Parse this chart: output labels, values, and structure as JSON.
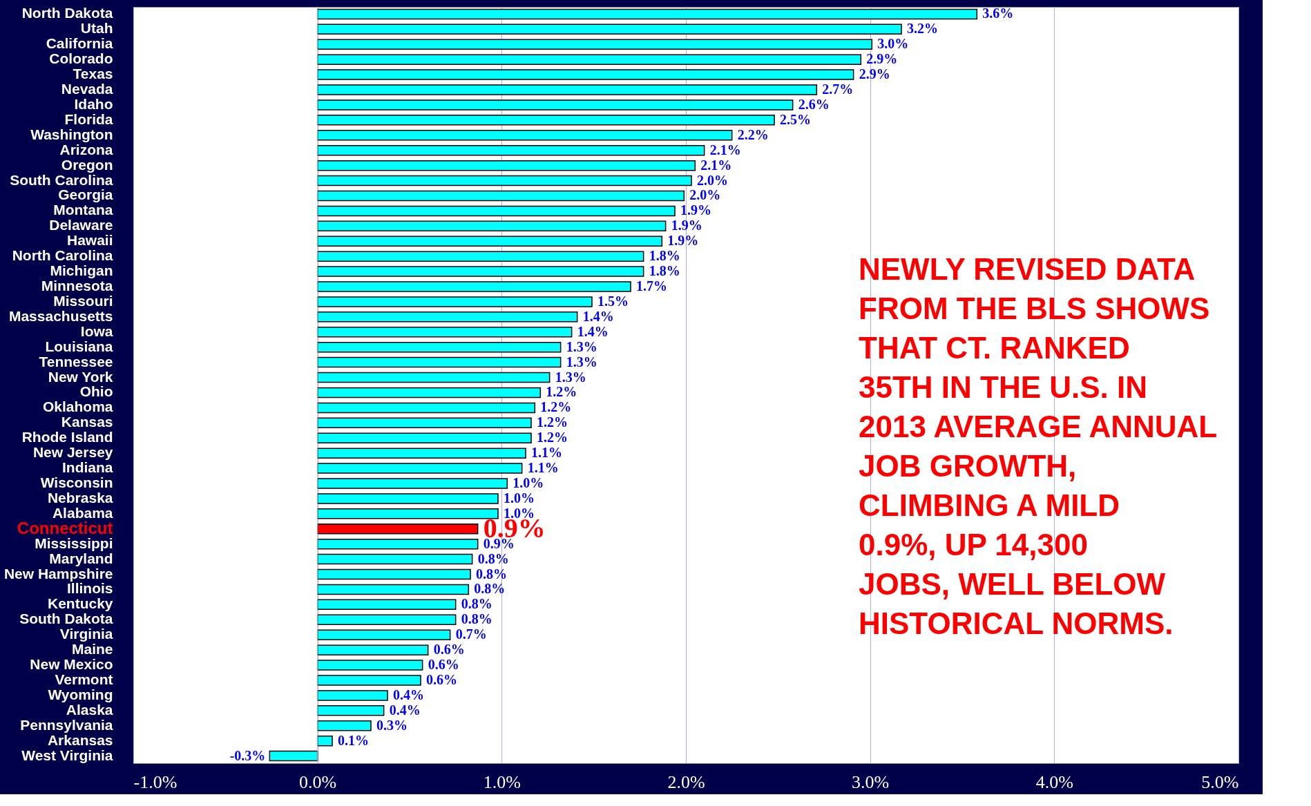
{
  "chart_data": {
    "type": "bar",
    "orientation": "horizontal",
    "categories": [
      "North Dakota",
      "Utah",
      "California",
      "Colorado",
      "Texas",
      "Nevada",
      "Idaho",
      "Florida",
      "Washington",
      "Arizona",
      "Oregon",
      "South Carolina",
      "Georgia",
      "Montana",
      "Delaware",
      "Hawaii",
      "North Carolina",
      "Michigan",
      "Minnesota",
      "Missouri",
      "Massachusetts",
      "Iowa",
      "Louisiana",
      "Tennessee",
      "New York",
      "Ohio",
      "Oklahoma",
      "Kansas",
      "Rhode Island",
      "New Jersey",
      "Indiana",
      "Wisconsin",
      "Nebraska",
      "Alabama",
      "Connecticut",
      "Mississippi",
      "Maryland",
      "New Hampshire",
      "Illinois",
      "Kentucky",
      "South Dakota",
      "Virginia",
      "Maine",
      "New Mexico",
      "Vermont",
      "Wyoming",
      "Alaska",
      "Pennsylvania",
      "Arkansas",
      "West Virginia"
    ],
    "values": [
      3.58,
      3.17,
      3.01,
      2.95,
      2.91,
      2.71,
      2.58,
      2.48,
      2.25,
      2.1,
      2.05,
      2.03,
      1.99,
      1.94,
      1.89,
      1.87,
      1.77,
      1.77,
      1.7,
      1.49,
      1.41,
      1.38,
      1.32,
      1.32,
      1.26,
      1.21,
      1.18,
      1.16,
      1.16,
      1.13,
      1.11,
      1.03,
      0.98,
      0.98,
      0.87,
      0.87,
      0.84,
      0.83,
      0.82,
      0.75,
      0.75,
      0.72,
      0.6,
      0.57,
      0.56,
      0.38,
      0.36,
      0.29,
      0.08,
      -0.26
    ],
    "value_labels": [
      "3.6%",
      "3.2%",
      "3.0%",
      "2.9%",
      "2.9%",
      "2.7%",
      "2.6%",
      "2.5%",
      "2.2%",
      "2.1%",
      "2.1%",
      "2.0%",
      "2.0%",
      "1.9%",
      "1.9%",
      "1.9%",
      "1.8%",
      "1.8%",
      "1.7%",
      "1.5%",
      "1.4%",
      "1.4%",
      "1.3%",
      "1.3%",
      "1.3%",
      "1.2%",
      "1.2%",
      "1.2%",
      "1.2%",
      "1.1%",
      "1.1%",
      "1.0%",
      "1.0%",
      "1.0%",
      "0.9%",
      "0.9%",
      "0.8%",
      "0.8%",
      "0.8%",
      "0.8%",
      "0.8%",
      "0.7%",
      "0.6%",
      "0.6%",
      "0.6%",
      "0.4%",
      "0.4%",
      "0.3%",
      "0.1%",
      "-0.3%"
    ],
    "color": "#00ffff",
    "colors": [
      "#00ffff",
      "#00ffff",
      "#00ffff",
      "#00ffff",
      "#00ffff",
      "#00ffff",
      "#00ffff",
      "#00ffff",
      "#00ffff",
      "#00ffff",
      "#00ffff",
      "#00ffff",
      "#00ffff",
      "#00ffff",
      "#00ffff",
      "#00ffff",
      "#00ffff",
      "#00ffff",
      "#00ffff",
      "#00ffff",
      "#00ffff",
      "#00ffff",
      "#00ffff",
      "#00ffff",
      "#00ffff",
      "#00ffff",
      "#00ffff",
      "#00ffff",
      "#00ffff",
      "#00ffff",
      "#00ffff",
      "#00ffff",
      "#00ffff",
      "#00ffff",
      "#ff0000",
      "#00ffff",
      "#00ffff",
      "#00ffff",
      "#00ffff",
      "#00ffff",
      "#00ffff",
      "#00ffff",
      "#00ffff",
      "#00ffff",
      "#00ffff",
      "#00ffff",
      "#00ffff",
      "#00ffff",
      "#00ffff",
      "#00ffff"
    ],
    "xlim": [
      -1,
      5
    ],
    "xticks": [
      {
        "value": -1,
        "label": "-1.0%"
      },
      {
        "value": 0,
        "label": "0.0%"
      },
      {
        "value": 1,
        "label": "1.0%"
      },
      {
        "value": 2,
        "label": "2.0%"
      },
      {
        "value": 3,
        "label": "3.0%"
      },
      {
        "value": 4,
        "label": "4.0%"
      },
      {
        "value": 5,
        "label": "5.0%"
      }
    ],
    "grid": "x",
    "annotations": [
      "NEWLY REVISED DATA FROM THE BLS SHOWS THAT CT. RANKED 35TH IN THE U.S. IN 2013 AVERAGE ANNUAL JOB GROWTH, CLIMBING A MILD 0.9%, UP 14,300 JOBS, WELL BELOW HISTORICAL NORMS."
    ]
  }
}
